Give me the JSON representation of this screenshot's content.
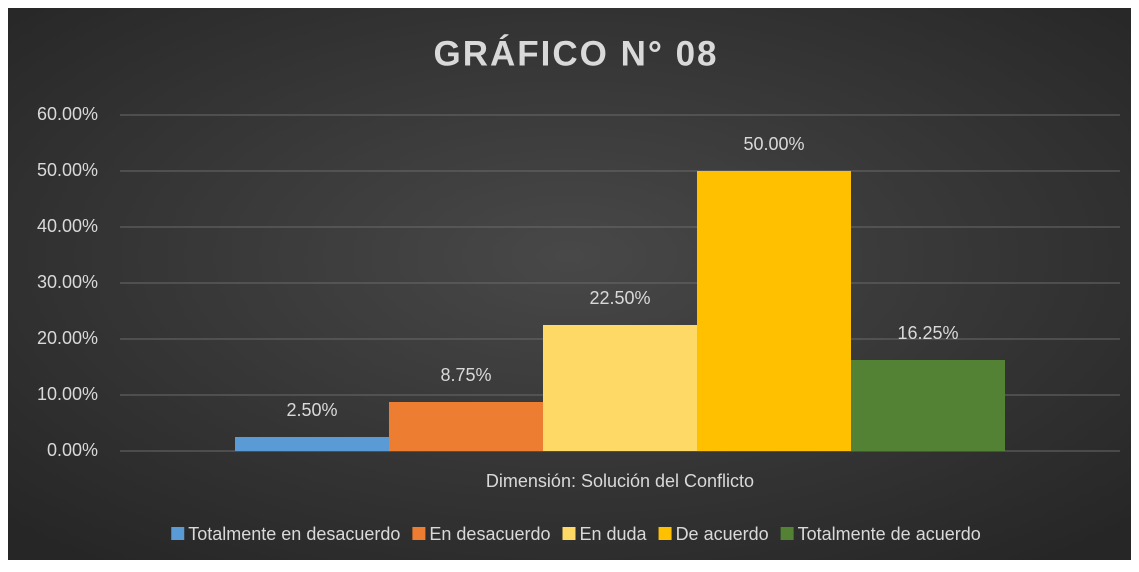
{
  "chart_data": {
    "type": "bar",
    "title": "GRÁFICO N° 08",
    "categories": [
      "Dimensión: Solución del Conflicto"
    ],
    "series": [
      {
        "name": "Totalmente en desacuerdo",
        "color": "#5b9bd5",
        "values": [
          2.5
        ],
        "value_labels": [
          "2.50%"
        ]
      },
      {
        "name": "En desacuerdo",
        "color": "#ed7d31",
        "values": [
          8.75
        ],
        "value_labels": [
          "8.75%"
        ]
      },
      {
        "name": "En duda",
        "color": "#ffd966",
        "values": [
          22.5
        ],
        "value_labels": [
          "22.50%"
        ]
      },
      {
        "name": "De acuerdo",
        "color": "#ffc000",
        "values": [
          50
        ],
        "value_labels": [
          "50.00%"
        ]
      },
      {
        "name": "Totalmente de acuerdo",
        "color": "#548235",
        "values": [
          16.25
        ],
        "value_labels": [
          "16.25%"
        ]
      }
    ],
    "ylim": [
      0,
      60
    ],
    "yticks": [
      {
        "value": 0,
        "label": "0.00%"
      },
      {
        "value": 10,
        "label": "10.00%"
      },
      {
        "value": 20,
        "label": "20.00%"
      },
      {
        "value": 30,
        "label": "30.00%"
      },
      {
        "value": 40,
        "label": "40.00%"
      },
      {
        "value": 50,
        "label": "50.00%"
      },
      {
        "value": 60,
        "label": "60.00%"
      }
    ],
    "grid": true,
    "legend": "bottom"
  }
}
